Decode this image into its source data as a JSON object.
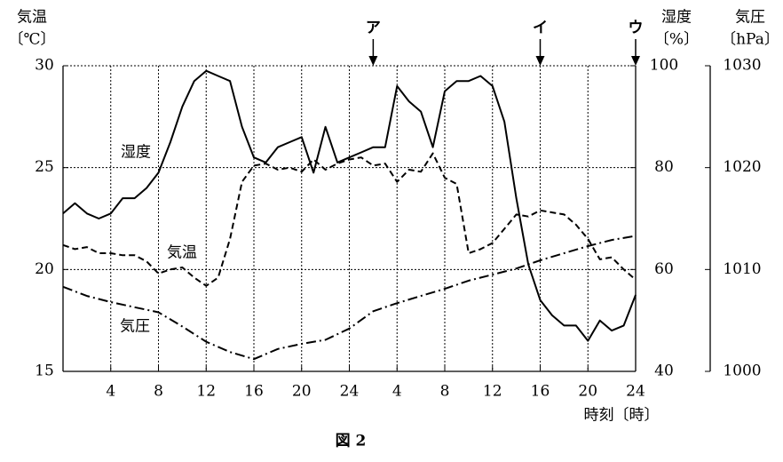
{
  "chart_data": {
    "type": "line",
    "title": "図 2",
    "xlabel": "時刻〔時〕",
    "ylabel": [
      "気温",
      "〔℃〕"
    ],
    "y2label": [
      "湿度",
      "〔%〕"
    ],
    "y3label": [
      "気圧",
      "〔hPa〕"
    ],
    "x": [
      0,
      1,
      2,
      3,
      4,
      5,
      6,
      7,
      8,
      9,
      10,
      11,
      12,
      13,
      14,
      15,
      16,
      17,
      18,
      19,
      20,
      21,
      22,
      23,
      24,
      25,
      26,
      27,
      28,
      29,
      30,
      31,
      32,
      33,
      34,
      35,
      36,
      37,
      38,
      39,
      40,
      41,
      42,
      43,
      44,
      45,
      46,
      47,
      48
    ],
    "xlim": [
      0,
      48
    ],
    "xticks": [
      4,
      8,
      12,
      16,
      20,
      24,
      {
        "value": 28,
        "label": "4"
      },
      {
        "value": 32,
        "label": "8"
      },
      {
        "value": 36,
        "label": "12"
      },
      {
        "value": 40,
        "label": "16"
      },
      {
        "value": 44,
        "label": "20"
      },
      {
        "value": 48,
        "label": "24"
      }
    ],
    "ylim": [
      15,
      30
    ],
    "yticks": [
      15,
      20,
      25,
      30
    ],
    "y2lim": [
      40,
      100
    ],
    "y2ticks": [
      40,
      60,
      80,
      100
    ],
    "y3lim": [
      1000,
      1030
    ],
    "y3ticks": [
      1000,
      1010,
      1020,
      1030
    ],
    "grid": true,
    "series": [
      {
        "name": "湿度",
        "color": "#000000",
        "style": "solid",
        "axis": "y2",
        "values": [
          71,
          73,
          71,
          70,
          71,
          74,
          74,
          76,
          79,
          85,
          92,
          97,
          99,
          98,
          97,
          88,
          82,
          81,
          84,
          85,
          86,
          79,
          88,
          81,
          82,
          83,
          84,
          84,
          96,
          93,
          91,
          84,
          95,
          97,
          97,
          98,
          96,
          89,
          74,
          61,
          54,
          51,
          49,
          49,
          46,
          50,
          48,
          49,
          55
        ]
      },
      {
        "name": "気温",
        "color": "#000000",
        "style": "dashed",
        "values": [
          21.2,
          21.0,
          21.1,
          20.8,
          20.8,
          20.7,
          20.7,
          20.4,
          19.8,
          20.0,
          20.1,
          19.6,
          19.2,
          19.6,
          21.5,
          24.3,
          25.1,
          25.2,
          24.9,
          25.0,
          24.8,
          25.4,
          24.9,
          25.2,
          25.4,
          25.5,
          25.1,
          25.2,
          24.3,
          24.9,
          24.8,
          25.7,
          24.5,
          24.2,
          20.8,
          21.0,
          21.3,
          22.0,
          22.7,
          22.6,
          22.9,
          22.8,
          22.7,
          22.2,
          21.5,
          20.5,
          20.6,
          20.0,
          19.5
        ]
      },
      {
        "name": "気圧",
        "color": "#000000",
        "style": "dashdot",
        "axis": "y3",
        "x": [
          0,
          2,
          4,
          6,
          8,
          10,
          12,
          14,
          16,
          18,
          20,
          22,
          24,
          26,
          28,
          30,
          32,
          34,
          36,
          38,
          40,
          42,
          44,
          46,
          48
        ],
        "values": [
          1008.3,
          1007.4,
          1006.8,
          1006.3,
          1005.8,
          1004.4,
          1002.9,
          1001.9,
          1001.2,
          1002.2,
          1002.7,
          1003.1,
          1004.2,
          1005.9,
          1006.7,
          1007.4,
          1008.1,
          1008.9,
          1009.5,
          1010.1,
          1010.9,
          1011.6,
          1012.3,
          1012.9,
          1013.3
        ]
      }
    ],
    "annotations": [
      {
        "text": "ア",
        "x": 26
      },
      {
        "text": "イ",
        "x": 40
      },
      {
        "text": "ウ",
        "x": 48
      }
    ]
  }
}
